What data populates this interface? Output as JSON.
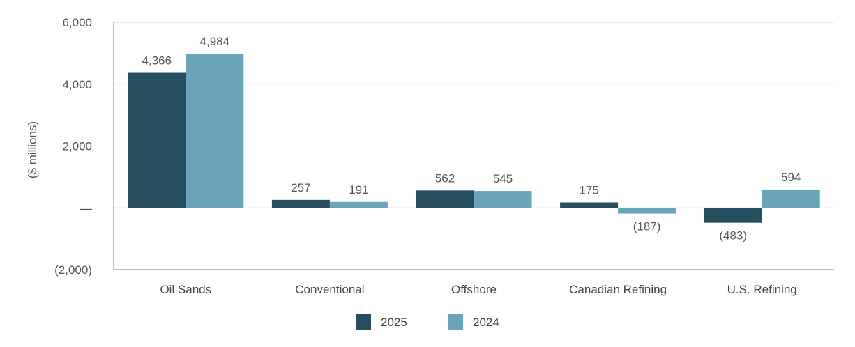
{
  "chart_data": {
    "type": "bar",
    "categories": [
      "Oil Sands",
      "Conventional",
      "Offshore",
      "Canadian Refining",
      "U.S. Refining"
    ],
    "series": [
      {
        "name": "2025",
        "color": "#264e5e",
        "values": [
          4366,
          257,
          562,
          175,
          -483
        ],
        "labels": [
          "4,366",
          "257",
          "562",
          "175",
          "(483)"
        ]
      },
      {
        "name": "2024",
        "color": "#6aa4ba",
        "values": [
          4984,
          191,
          545,
          -187,
          594
        ],
        "labels": [
          "4,984",
          "191",
          "545",
          "(187)",
          "594"
        ]
      }
    ],
    "ylabel": "($ millions)",
    "ylim": [
      -2000,
      6000
    ],
    "yticks": [
      6000,
      4000,
      2000,
      0,
      -2000
    ],
    "ytick_labels": [
      "6,000",
      "4,000",
      "2,000",
      "—",
      "(2,000)"
    ],
    "grid": true,
    "legend_position": "bottom-center"
  }
}
